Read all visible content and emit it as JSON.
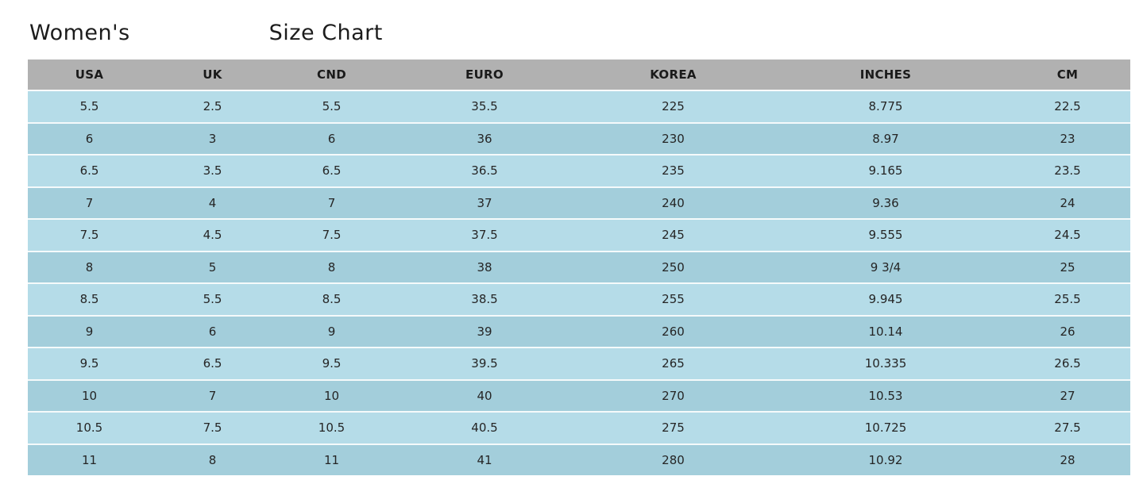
{
  "page": {
    "title_part1": "Women's",
    "title_part2": "Size Chart"
  },
  "colors": {
    "header_bg": "#b1b1b1",
    "row_light": "#b5dce8",
    "row_dark": "#a3cedb",
    "row_separator": "#f5fafb",
    "text": "#252525",
    "background": "#ffffff"
  },
  "chart_data": {
    "type": "table",
    "title": "Women's Size Chart",
    "columns": [
      "USA",
      "UK",
      "CND",
      "EURO",
      "KOREA",
      "INCHES",
      "CM"
    ],
    "rows": [
      [
        "5.5",
        "2.5",
        "5.5",
        "35.5",
        "225",
        "8.775",
        "22.5"
      ],
      [
        "6",
        "3",
        "6",
        "36",
        "230",
        "8.97",
        "23"
      ],
      [
        "6.5",
        "3.5",
        "6.5",
        "36.5",
        "235",
        "9.165",
        "23.5"
      ],
      [
        "7",
        "4",
        "7",
        "37",
        "240",
        "9.36",
        "24"
      ],
      [
        "7.5",
        "4.5",
        "7.5",
        "37.5",
        "245",
        "9.555",
        "24.5"
      ],
      [
        "8",
        "5",
        "8",
        "38",
        "250",
        "9 3/4",
        "25"
      ],
      [
        "8.5",
        "5.5",
        "8.5",
        "38.5",
        "255",
        "9.945",
        "25.5"
      ],
      [
        "9",
        "6",
        "9",
        "39",
        "260",
        "10.14",
        "26"
      ],
      [
        "9.5",
        "6.5",
        "9.5",
        "39.5",
        "265",
        "10.335",
        "26.5"
      ],
      [
        "10",
        "7",
        "10",
        "40",
        "270",
        "10.53",
        "27"
      ],
      [
        "10.5",
        "7.5",
        "10.5",
        "40.5",
        "275",
        "10.725",
        "27.5"
      ],
      [
        "11",
        "8",
        "11",
        "41",
        "280",
        "10.92",
        "28"
      ]
    ]
  }
}
